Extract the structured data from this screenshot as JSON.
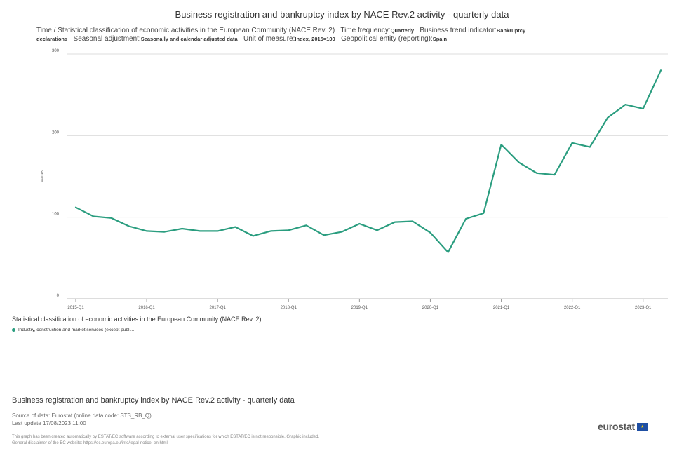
{
  "title": "Business registration and bankruptcy index by NACE Rev.2 activity - quarterly data",
  "subtitle": {
    "time_label": "Time / Statistical classification of economic activities in the European Community (NACE Rev. 2)",
    "freq_label": "Time frequency:",
    "freq_value": "Quarterly",
    "indicator_label": "Business trend indicator:",
    "indicator_value_1": "Bankruptcy",
    "indicator_value_2": "declarations",
    "seasonal_label": "Seasonal adjustment:",
    "seasonal_value": "Seasonally and calendar adjusted data",
    "unit_label": "Unit of measure:",
    "unit_value": "Index, 2015=100",
    "geo_label": "Geopolitical entity (reporting):",
    "geo_value": "Spain"
  },
  "chart_data": {
    "type": "line",
    "ylabel": "Values",
    "ylim": [
      0,
      300
    ],
    "yticks": [
      0,
      100,
      200,
      300
    ],
    "x": [
      "2015-Q1",
      "2015-Q2",
      "2015-Q3",
      "2015-Q4",
      "2016-Q1",
      "2016-Q2",
      "2016-Q3",
      "2016-Q4",
      "2017-Q1",
      "2017-Q2",
      "2017-Q3",
      "2017-Q4",
      "2018-Q1",
      "2018-Q2",
      "2018-Q3",
      "2018-Q4",
      "2019-Q1",
      "2019-Q2",
      "2019-Q3",
      "2019-Q4",
      "2020-Q1",
      "2020-Q2",
      "2020-Q3",
      "2020-Q4",
      "2021-Q1",
      "2021-Q2",
      "2021-Q3",
      "2021-Q4",
      "2022-Q1",
      "2022-Q2",
      "2022-Q3",
      "2022-Q4",
      "2023-Q1",
      "2023-Q2"
    ],
    "xticks": [
      "2015-Q1",
      "2016-Q1",
      "2017-Q1",
      "2018-Q1",
      "2019-Q1",
      "2020-Q1",
      "2021-Q1",
      "2022-Q1",
      "2023-Q1"
    ],
    "series": [
      {
        "name": "Industry, construction and market services (except publi...",
        "color": "#2a9d7f",
        "values": [
          112,
          101,
          99,
          89,
          83,
          82,
          86,
          83,
          83,
          88,
          77,
          83,
          84,
          90,
          78,
          82,
          92,
          84,
          94,
          95,
          81,
          57,
          98,
          105,
          189,
          167,
          154,
          152,
          191,
          186,
          222,
          238,
          233,
          280
        ]
      }
    ],
    "grid": true,
    "legend": "bottom-left"
  },
  "legend": {
    "title": "Statistical classification of economic activities in the European Community (NACE Rev. 2)"
  },
  "footer": {
    "title": "Business registration and bankruptcy index by NACE Rev.2 activity - quarterly data",
    "source": "Source of data: Eurostat (online data code: STS_RB_Q)",
    "last_update": "Last update 17/08/2023 11:00",
    "disclaimer_1": "This graph has been created automatically by ESTAT/EC software according to external user specifications for which ESTAT/EC is not responsible. Graphic included.",
    "disclaimer_2": "General disclaimer of the EC website: https://ec.europa.eu/info/legal-notice_en.html",
    "logo_text": "eurostat"
  }
}
